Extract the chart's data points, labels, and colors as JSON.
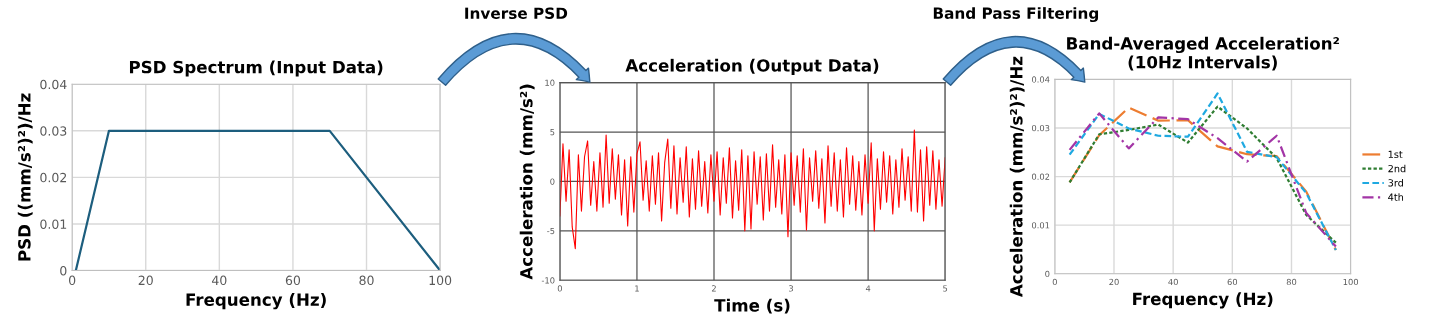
{
  "chart_data": [
    {
      "type": "line",
      "title": "PSD Spectrum (Input Data)",
      "xlabel": "Frequency (Hz)",
      "ylabel": "PSD ((mm/s²)²)/Hz",
      "x": [
        1,
        10,
        70,
        100
      ],
      "series": [
        {
          "color": "#1d5e7e",
          "values": [
            0,
            0.03,
            0.03,
            0
          ]
        }
      ],
      "xlim": [
        0,
        100
      ],
      "xticks": [
        0,
        20,
        40,
        60,
        80,
        100
      ],
      "ylim": [
        0,
        0.04
      ],
      "yticks": [
        0,
        0.01,
        0.02,
        0.03,
        0.04
      ],
      "grid": true,
      "legend": false,
      "marker": "none",
      "line_style": "solid"
    },
    {
      "type": "line",
      "title": "Acceleration (Output Data)",
      "xlabel": "Time (s)",
      "ylabel": "Acceleration (mm/s²)",
      "annotations": [
        "Inverse PSD"
      ],
      "x": [
        0,
        0.04,
        0.08,
        0.12,
        0.16,
        0.2,
        0.24,
        0.28,
        0.32,
        0.36,
        0.4,
        0.44,
        0.48,
        0.52,
        0.56,
        0.6,
        0.64,
        0.68,
        0.72,
        0.76,
        0.8,
        0.84,
        0.88,
        0.92,
        0.96,
        1,
        1.04,
        1.08,
        1.12,
        1.16,
        1.2,
        1.24,
        1.28,
        1.32,
        1.36,
        1.4,
        1.44,
        1.48,
        1.52,
        1.56,
        1.6,
        1.64,
        1.68,
        1.72,
        1.76,
        1.8,
        1.84,
        1.88,
        1.92,
        1.96,
        2,
        2.04,
        2.08,
        2.12,
        2.16,
        2.2,
        2.24,
        2.28,
        2.32,
        2.36,
        2.4,
        2.44,
        2.48,
        2.52,
        2.56,
        2.6,
        2.64,
        2.68,
        2.72,
        2.76,
        2.8,
        2.84,
        2.88,
        2.92,
        2.96,
        3,
        3.04,
        3.08,
        3.12,
        3.16,
        3.2,
        3.24,
        3.28,
        3.32,
        3.36,
        3.4,
        3.44,
        3.48,
        3.52,
        3.56,
        3.6,
        3.64,
        3.68,
        3.72,
        3.76,
        3.8,
        3.84,
        3.88,
        3.92,
        3.96,
        4,
        4.04,
        4.08,
        4.12,
        4.16,
        4.2,
        4.24,
        4.28,
        4.32,
        4.36,
        4.4,
        4.44,
        4.48,
        4.52,
        4.56,
        4.6,
        4.64,
        4.68,
        4.72,
        4.76,
        4.8,
        4.84,
        4.88,
        4.92,
        4.96,
        5
      ],
      "series": [
        {
          "color": "#ff0000",
          "values": [
            -3.5,
            3.8,
            -2.0,
            3.2,
            -4.6,
            -6.8,
            2.7,
            -3.0,
            2.5,
            4.1,
            -2.4,
            2.0,
            -3.0,
            2.9,
            -2.6,
            4.7,
            -2.2,
            3.3,
            -1.8,
            2.7,
            -3.4,
            2.2,
            -4.5,
            2.5,
            -3.1,
            2.8,
            4.0,
            -1.9,
            2.1,
            -3.0,
            2.6,
            -2.3,
            2.9,
            -4.0,
            1.9,
            4.3,
            -2.7,
            3.6,
            -3.3,
            2.4,
            -2.1,
            3.5,
            -3.6,
            2.3,
            -2.8,
            3.1,
            -2.5,
            2.0,
            -3.2,
            2.7,
            -2.0,
            3.0,
            -3.4,
            2.4,
            -2.2,
            3.4,
            -3.7,
            2.1,
            -2.9,
            3.2,
            -5.0,
            2.6,
            -4.8,
            3.0,
            -2.3,
            2.5,
            -3.9,
            2.8,
            -3.0,
            3.7,
            -2.6,
            2.2,
            -3.3,
            2.7,
            -5.6,
            2.9,
            -2.4,
            2.6,
            -3.1,
            3.3,
            -4.9,
            2.4,
            -2.0,
            3.1,
            -2.7,
            2.3,
            -4.2,
            3.6,
            -2.5,
            2.9,
            -3.0,
            2.2,
            -3.6,
            3.4,
            -2.3,
            2.6,
            -2.9,
            2.0,
            -3.4,
            2.7,
            -2.2,
            3.9,
            -5.0,
            2.3,
            -2.8,
            3.0,
            -2.1,
            2.6,
            -3.3,
            2.2,
            -2.6,
            3.3,
            -1.9,
            2.5,
            -3.0,
            5.2,
            -3.1,
            3.2,
            -4.0,
            3.5,
            -2.4,
            3.1,
            -2.8,
            2.2,
            -2.5,
            2.4
          ]
        }
      ],
      "xlim": [
        0,
        5
      ],
      "xticks": [
        0,
        1,
        2,
        3,
        4,
        5
      ],
      "ylim": [
        -10,
        10
      ],
      "yticks": [
        -10,
        -5,
        0,
        5,
        10
      ],
      "grid": true,
      "legend": false,
      "marker": "none",
      "line_style": "solid"
    },
    {
      "type": "line",
      "title": "Band-Averaged Acceleration²\n(10Hz Intervals)",
      "xlabel": "Frequency (Hz)",
      "ylabel": "Acceleration (mm/s²)²)/Hz",
      "annotations": [
        "Band Pass Filtering"
      ],
      "x": [
        5,
        15,
        25,
        35,
        45,
        55,
        65,
        75,
        85,
        95
      ],
      "series": [
        {
          "name": "1st",
          "color": "#ed7d31",
          "line_style": "longdash",
          "values": [
            0.0188,
            0.0285,
            0.0342,
            0.0315,
            0.0316,
            0.0262,
            0.0246,
            0.0242,
            0.0169,
            0.0049
          ]
        },
        {
          "name": "2nd",
          "color": "#2f7d32",
          "line_style": "dotted",
          "values": [
            0.0188,
            0.0287,
            0.0296,
            0.0307,
            0.027,
            0.0344,
            0.0299,
            0.0238,
            0.0121,
            0.0064
          ]
        },
        {
          "name": "3rd",
          "color": "#1fa9e1",
          "line_style": "dashed",
          "values": [
            0.0245,
            0.0329,
            0.0299,
            0.0284,
            0.0282,
            0.0371,
            0.0251,
            0.024,
            0.0166,
            0.0049
          ]
        },
        {
          "name": "4th",
          "color": "#a335a6",
          "line_style": "dashdot",
          "values": [
            0.0255,
            0.033,
            0.0258,
            0.0322,
            0.0318,
            0.0279,
            0.0231,
            0.0284,
            0.0125,
            0.0056
          ]
        }
      ],
      "xlim": [
        0,
        100
      ],
      "xticks": [
        0,
        20,
        40,
        60,
        80,
        100
      ],
      "ylim": [
        0,
        0.04
      ],
      "yticks": [
        0,
        0.01,
        0.02,
        0.03,
        0.04
      ],
      "grid": true,
      "legend": "right",
      "marker": "none"
    }
  ]
}
